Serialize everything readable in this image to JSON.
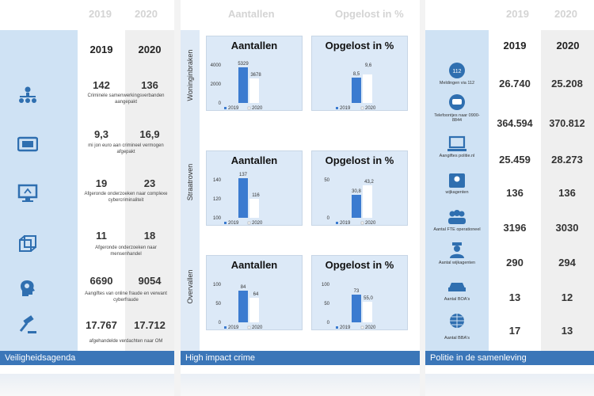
{
  "left": {
    "ghost_year_2019": "2019",
    "ghost_year_2020": "2020",
    "year_2019": "2019",
    "year_2020": "2020",
    "rows": [
      {
        "icon": "org-chart-icon",
        "v2019": "142",
        "v2020": "136",
        "desc": "Criminele samenwerkingsverbanden aangepakt"
      },
      {
        "icon": "money-icon",
        "v2019": "9,3",
        "v2020": "16,9",
        "desc": "mi jon euro aan crimineel vermogen afgepakt"
      },
      {
        "icon": "computer-icon",
        "v2019": "19",
        "v2020": "23",
        "desc": "Afgeronde onderzoeken naar complexe cybercriminaliteit"
      },
      {
        "icon": "cube-icon",
        "v2019": "11",
        "v2020": "18",
        "desc": "Afgeronde onderzoeken naar mensenhandel"
      },
      {
        "icon": "head-icon",
        "v2019": "6690",
        "v2020": "9054",
        "desc": "Aangiftes van online fraude en verwant cyberfraude"
      },
      {
        "icon": "gavel-icon",
        "v2019": "17.767",
        "v2020": "17.712",
        "desc": "afgehandelde verdachten naar OM"
      }
    ],
    "footer": "Veiligheidsagenda"
  },
  "middle": {
    "ghost_aantallen": "Aantallen",
    "ghost_opgelost": "Opgelost in %",
    "footer": "High impact crime",
    "rows": [
      {
        "label": "Woninginbraken",
        "aantallen": {
          "title": "Aantallen",
          "ticks": [
            "4000",
            "2000",
            "0"
          ],
          "v2019": "5329",
          "v2020": "3678"
        },
        "opgelost": {
          "title": "Opgelost in %",
          "v2019": "8,5",
          "v2020": "9,6"
        }
      },
      {
        "label": "Straatroven",
        "aantallen": {
          "title": "Aantallen",
          "ticks": [
            "140",
            "120",
            "100"
          ],
          "v2019": "137",
          "v2020": "116"
        },
        "opgelost": {
          "title": "Opgelost in %",
          "ticks": [
            "50",
            "0"
          ],
          "v2019": "30,8",
          "v2020": "43,2"
        }
      },
      {
        "label": "Overvallen",
        "aantallen": {
          "title": "Aantallen",
          "ticks": [
            "100",
            "50",
            "0"
          ],
          "v2019": "84",
          "v2020": "64"
        },
        "opgelost": {
          "title": "Opgelost in %",
          "ticks": [
            "100",
            "50",
            "0"
          ],
          "v2019": "73",
          "v2020": "55,0"
        }
      }
    ],
    "legend_2019": "2019",
    "legend_2020": "2020"
  },
  "right": {
    "ghost_year_2019": "2019",
    "ghost_year_2020": "2020",
    "year_2019": "2019",
    "year_2020": "2020",
    "rows": [
      {
        "icon": "phone-icon",
        "label": "Meldingen via 112",
        "v2019": "26.740",
        "v2020": "25.208"
      },
      {
        "icon": "chat-icon",
        "label": "Telefoontjes naar 0900-8844",
        "v2019": "364.594",
        "v2020": "370.812"
      },
      {
        "icon": "laptop-icon",
        "label": "Aangiftes politie.nl",
        "v2019": "25.459",
        "v2020": "28.273"
      },
      {
        "icon": "agent-icon",
        "label": "wijkagenten",
        "v2019": "136",
        "v2020": "136"
      },
      {
        "icon": "group-icon",
        "label": "Aantal FTE operationeel",
        "v2019": "3196",
        "v2020": "3030"
      },
      {
        "icon": "officer-icon",
        "label": "Aantal wijkagenten",
        "v2019": "290",
        "v2020": "294"
      },
      {
        "icon": "car-icon",
        "label": "Aantal BOA's",
        "v2019": "13",
        "v2020": "12"
      },
      {
        "icon": "globe-icon",
        "label": "Aantal BBA's",
        "v2019": "17",
        "v2020": "13"
      }
    ],
    "footer": "Politie in de samenleving"
  },
  "colors": {
    "accent": "#3b76b8",
    "strip": "#cfe2f4",
    "bar2019": "#3b7bd0",
    "bar2020": "#ffffff"
  }
}
